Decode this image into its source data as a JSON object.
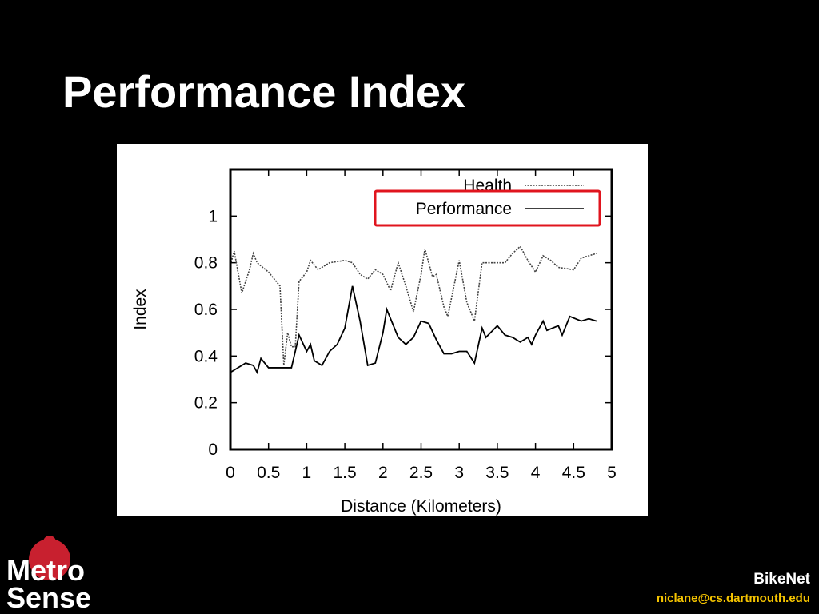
{
  "slide": {
    "title": "Performance Index",
    "logo_top": "Metro",
    "logo_bottom": "Sense",
    "footer_title": "BikeNet",
    "footer_email": "niclane@cs.dartmouth.edu"
  },
  "chart_data": {
    "type": "line",
    "xlabel": "Distance (Kilometers)",
    "ylabel": "Index",
    "xlim": [
      0,
      5
    ],
    "ylim": [
      0,
      1.2
    ],
    "xticks": [
      0,
      0.5,
      1,
      1.5,
      2,
      2.5,
      3,
      3.5,
      4,
      4.5,
      5
    ],
    "yticks": [
      0,
      0.2,
      0.4,
      0.6,
      0.8,
      1
    ],
    "legend": "upper right",
    "series": [
      {
        "name": "Health",
        "color": "#444444",
        "dash": "dotted",
        "x": [
          0,
          0.05,
          0.15,
          0.25,
          0.3,
          0.35,
          0.5,
          0.6,
          0.65,
          0.7,
          0.75,
          0.8,
          0.85,
          0.9,
          1.0,
          1.05,
          1.15,
          1.3,
          1.5,
          1.6,
          1.7,
          1.8,
          1.9,
          2.0,
          2.1,
          2.2,
          2.3,
          2.4,
          2.5,
          2.55,
          2.65,
          2.7,
          2.8,
          2.85,
          3.0,
          3.05,
          3.1,
          3.2,
          3.3,
          3.5,
          3.6,
          3.7,
          3.8,
          3.9,
          4.0,
          4.1,
          4.2,
          4.3,
          4.5,
          4.6,
          4.7,
          4.8
        ],
        "values": [
          0.79,
          0.85,
          0.67,
          0.77,
          0.84,
          0.8,
          0.76,
          0.72,
          0.7,
          0.36,
          0.5,
          0.44,
          0.44,
          0.72,
          0.76,
          0.81,
          0.77,
          0.8,
          0.81,
          0.8,
          0.75,
          0.73,
          0.77,
          0.75,
          0.68,
          0.8,
          0.7,
          0.59,
          0.75,
          0.86,
          0.74,
          0.75,
          0.61,
          0.57,
          0.81,
          0.72,
          0.63,
          0.55,
          0.8,
          0.8,
          0.8,
          0.84,
          0.87,
          0.81,
          0.76,
          0.83,
          0.81,
          0.78,
          0.77,
          0.82,
          0.83,
          0.84
        ]
      },
      {
        "name": "Performance",
        "color": "#000000",
        "dash": "solid",
        "x": [
          0,
          0.1,
          0.2,
          0.3,
          0.35,
          0.4,
          0.5,
          0.6,
          0.7,
          0.8,
          0.9,
          1.0,
          1.05,
          1.1,
          1.2,
          1.3,
          1.4,
          1.5,
          1.6,
          1.7,
          1.8,
          1.9,
          2.0,
          2.05,
          2.2,
          2.3,
          2.4,
          2.5,
          2.6,
          2.7,
          2.8,
          2.9,
          3.0,
          3.1,
          3.2,
          3.3,
          3.35,
          3.5,
          3.6,
          3.7,
          3.8,
          3.9,
          3.95,
          4.0,
          4.1,
          4.15,
          4.3,
          4.35,
          4.45,
          4.6,
          4.7,
          4.8
        ],
        "values": [
          0.33,
          0.35,
          0.37,
          0.36,
          0.33,
          0.39,
          0.35,
          0.35,
          0.35,
          0.35,
          0.49,
          0.42,
          0.45,
          0.38,
          0.36,
          0.42,
          0.45,
          0.52,
          0.7,
          0.55,
          0.36,
          0.37,
          0.5,
          0.6,
          0.48,
          0.45,
          0.48,
          0.55,
          0.54,
          0.47,
          0.41,
          0.41,
          0.42,
          0.42,
          0.37,
          0.52,
          0.48,
          0.53,
          0.49,
          0.48,
          0.46,
          0.48,
          0.45,
          0.49,
          0.55,
          0.51,
          0.53,
          0.49,
          0.57,
          0.55,
          0.56,
          0.55
        ]
      }
    ]
  }
}
